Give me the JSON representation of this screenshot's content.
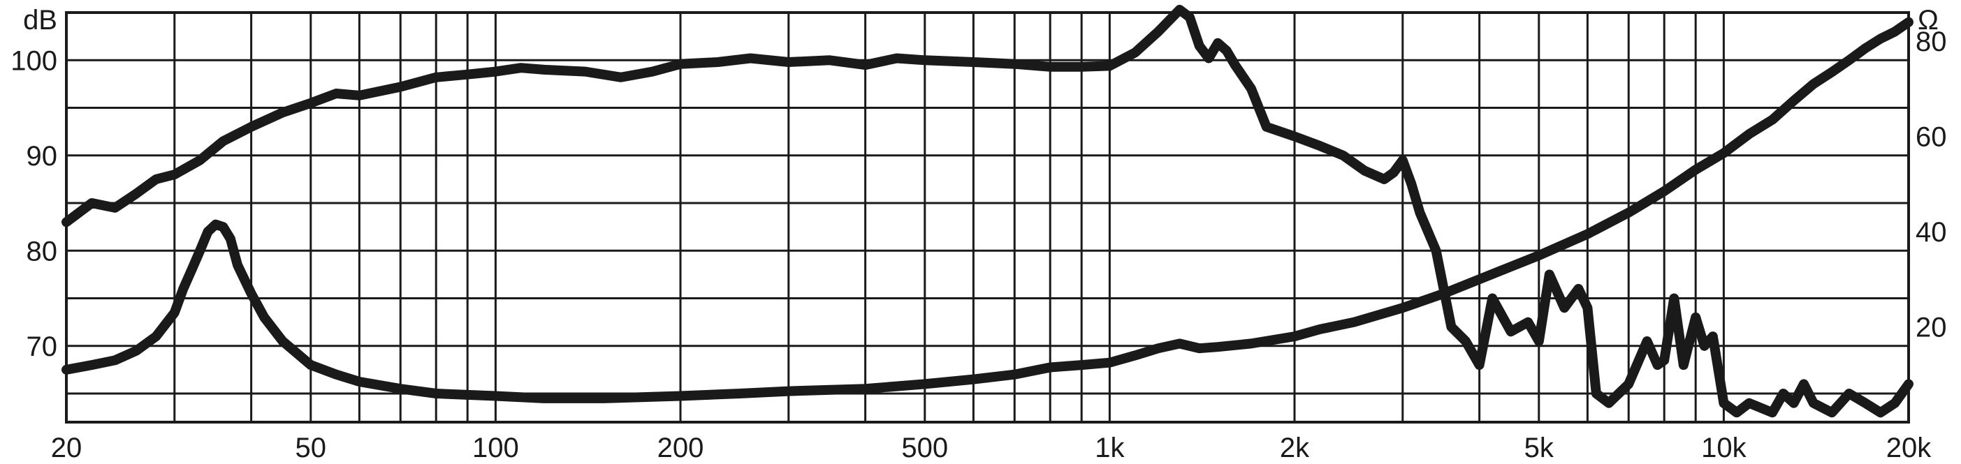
{
  "chart_data": {
    "type": "line",
    "x_scale": "log",
    "xlim": [
      20,
      20000
    ],
    "x_ticks": [
      {
        "value": 20,
        "label": "20"
      },
      {
        "value": 50,
        "label": "50"
      },
      {
        "value": 100,
        "label": "100"
      },
      {
        "value": 200,
        "label": "200"
      },
      {
        "value": 500,
        "label": "500"
      },
      {
        "value": 1000,
        "label": "1k"
      },
      {
        "value": 2000,
        "label": "2k"
      },
      {
        "value": 5000,
        "label": "5k"
      },
      {
        "value": 10000,
        "label": "10k"
      },
      {
        "value": 20000,
        "label": "20k"
      }
    ],
    "y_left": {
      "unit": "dB",
      "ylim": [
        62,
        105
      ],
      "ticks": [
        {
          "value": 70,
          "label": "70"
        },
        {
          "value": 80,
          "label": "80"
        },
        {
          "value": 90,
          "label": "90"
        },
        {
          "value": 100,
          "label": "100"
        }
      ]
    },
    "y_right": {
      "unit": "Ω",
      "ylim": [
        0,
        86
      ],
      "ticks": [
        {
          "value": 20,
          "label": "20"
        },
        {
          "value": 40,
          "label": "40"
        },
        {
          "value": 60,
          "label": "60"
        },
        {
          "value": 80,
          "label": "80"
        }
      ]
    },
    "grid": true,
    "series": [
      {
        "axis": "left",
        "x": [
          20,
          22,
          24,
          26,
          28,
          30,
          33,
          36,
          40,
          45,
          50,
          55,
          60,
          70,
          80,
          90,
          100,
          110,
          120,
          140,
          160,
          180,
          200,
          230,
          260,
          300,
          350,
          400,
          450,
          500,
          600,
          700,
          800,
          900,
          1000,
          1100,
          1200,
          1300,
          1350,
          1400,
          1450,
          1500,
          1550,
          1600,
          1700,
          1800,
          2000,
          2200,
          2400,
          2600,
          2800,
          2900,
          3000,
          3100,
          3200,
          3400,
          3600,
          3800,
          4000,
          4200,
          4500,
          4800,
          5000,
          5200,
          5500,
          5800,
          6000,
          6200,
          6500,
          7000,
          7500,
          7800,
          8000,
          8300,
          8600,
          9000,
          9300,
          9600,
          10000,
          10500,
          11000,
          12000,
          12500,
          13000,
          13500,
          14000,
          15000,
          16000,
          17000,
          18000,
          19000,
          20000
        ],
        "y": [
          83,
          85,
          84.5,
          86,
          87.5,
          88,
          89.5,
          91.5,
          93,
          94.5,
          95.5,
          96.5,
          96.3,
          97.2,
          98.2,
          98.5,
          98.8,
          99.2,
          99,
          98.8,
          98.2,
          98.8,
          99.6,
          99.8,
          100.2,
          99.8,
          100,
          99.5,
          100.2,
          100,
          99.8,
          99.6,
          99.3,
          99.3,
          99.4,
          100.8,
          103,
          105.3,
          104.5,
          101.5,
          100.2,
          101.8,
          101,
          99.5,
          97,
          93,
          92,
          91,
          90,
          88.4,
          87.5,
          88.2,
          89.5,
          87,
          84,
          80,
          72,
          70.5,
          68,
          75,
          71.5,
          72.5,
          70.5,
          77.5,
          74,
          76,
          74,
          65,
          64,
          66,
          70.5,
          68,
          68.5,
          75,
          68,
          73,
          70,
          71,
          64,
          63,
          64,
          63,
          65,
          64,
          66,
          64,
          63,
          65,
          64,
          63,
          64,
          66
        ]
      },
      {
        "axis": "right",
        "x": [
          20,
          22,
          24,
          26,
          28,
          30,
          31,
          32,
          33,
          34,
          35,
          36,
          37,
          38,
          40,
          42,
          45,
          50,
          55,
          60,
          70,
          80,
          100,
          120,
          150,
          200,
          250,
          300,
          400,
          500,
          600,
          700,
          800,
          900,
          1000,
          1100,
          1200,
          1300,
          1400,
          1500,
          1700,
          2000,
          2200,
          2500,
          3000,
          3500,
          4000,
          5000,
          6000,
          7000,
          8000,
          9000,
          10000,
          11000,
          12000,
          13000,
          14000,
          15000,
          16000,
          17000,
          18000,
          19000,
          20000
        ],
        "y": [
          11,
          12,
          13,
          15,
          18,
          23,
          28,
          32,
          36,
          40,
          41.5,
          41,
          38.5,
          33,
          27,
          22,
          17,
          12,
          10,
          8.5,
          7,
          6,
          5.5,
          5,
          5,
          5.5,
          6,
          6.5,
          7,
          8,
          9,
          10,
          11.5,
          12,
          12.5,
          14,
          15.5,
          16.5,
          15.5,
          15.8,
          16.5,
          18,
          19.5,
          21,
          24,
          27,
          30,
          35,
          39.5,
          44,
          48.5,
          53,
          56.5,
          60.5,
          63.5,
          67.5,
          71,
          73.5,
          76,
          78.5,
          80.5,
          82,
          84
        ]
      }
    ]
  }
}
